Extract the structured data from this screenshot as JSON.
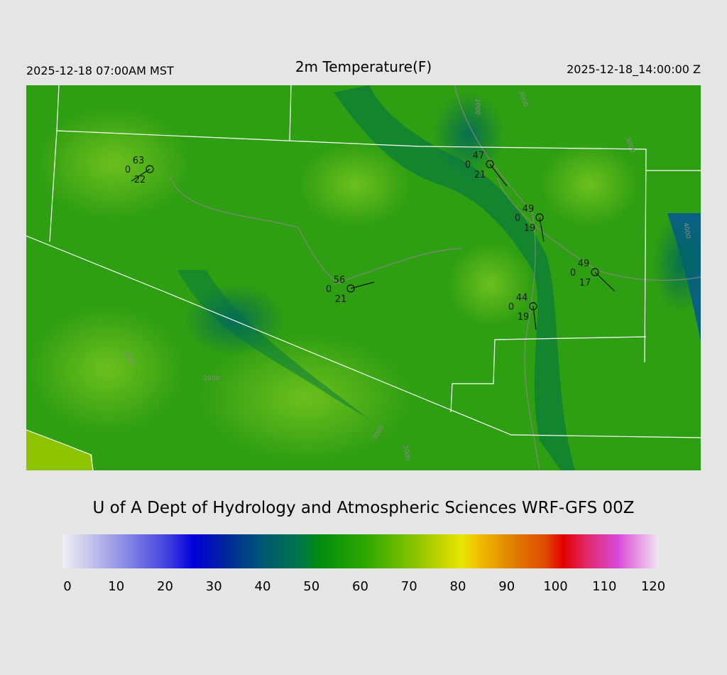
{
  "header": {
    "local_time": "2025-12-18 07:00AM MST",
    "title": "2m Temperature(F)",
    "valid_time": "2025-12-18_14:00:00 Z"
  },
  "stations": [
    {
      "temperature": 63,
      "pressure": 0,
      "dewpoint": 22
    },
    {
      "temperature": 47,
      "pressure": 0,
      "dewpoint": 21
    },
    {
      "temperature": 49,
      "pressure": 0,
      "dewpoint": 19
    },
    {
      "temperature": 49,
      "pressure": 0,
      "dewpoint": 17
    },
    {
      "temperature": 56,
      "pressure": 0,
      "dewpoint": 21
    },
    {
      "temperature": 44,
      "pressure": 0,
      "dewpoint": 19
    }
  ],
  "contour_labels": [
    2000,
    3000,
    3000,
    4000,
    2000,
    3000,
    3000,
    2000
  ],
  "footer": "U of A Dept of Hydrology and Atmospheric Sciences WRF-GFS 00Z",
  "colorbar": {
    "ticks": [
      0,
      10,
      20,
      30,
      40,
      50,
      60,
      70,
      80,
      90,
      100,
      110,
      120
    ]
  }
}
